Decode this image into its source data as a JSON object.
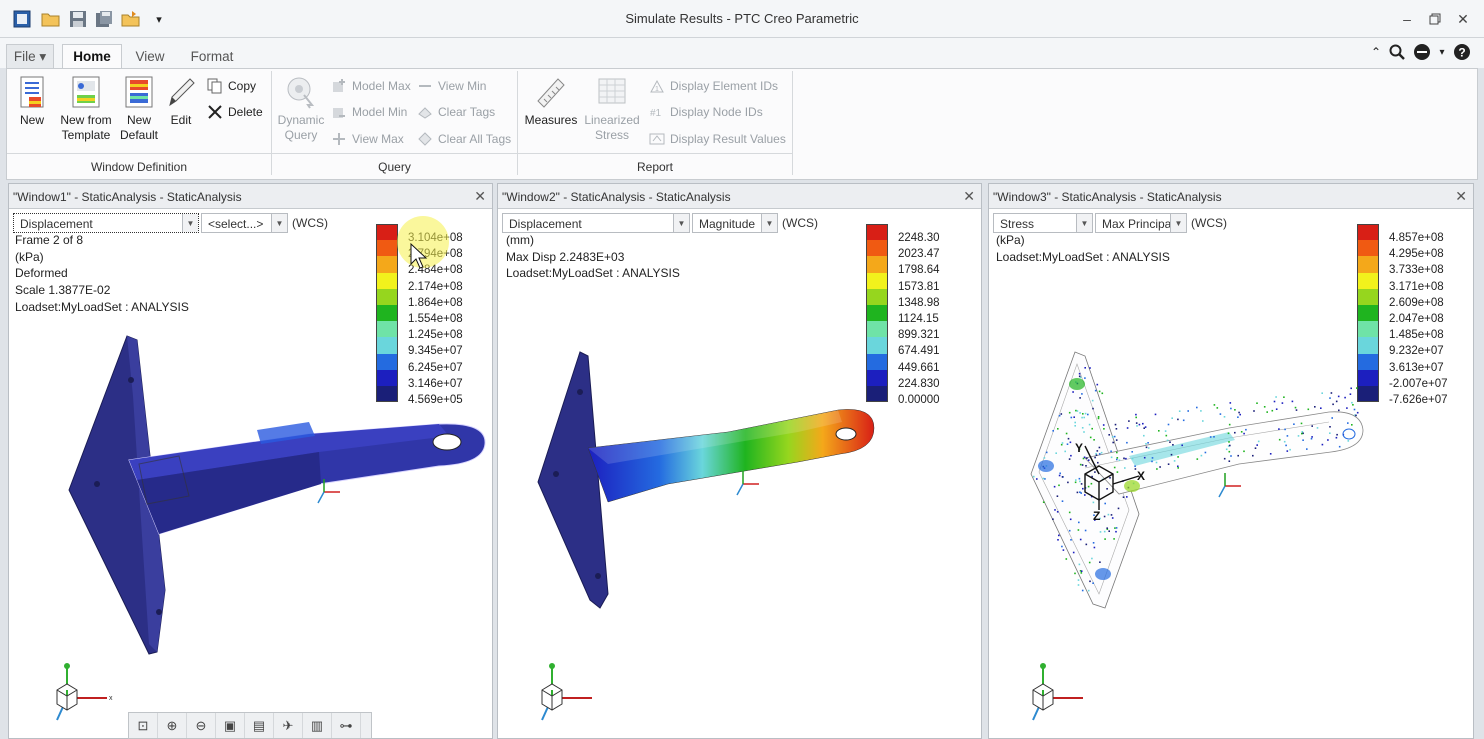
{
  "window_title": "Simulate Results - PTC Creo Parametric",
  "quick_access": [
    "app-icon",
    "open-icon",
    "save-icon",
    "save-as-icon",
    "open-folder-icon",
    "customize-dropdown-icon"
  ],
  "tabs": [
    {
      "label": "File ▾"
    },
    {
      "label": "Home"
    },
    {
      "label": "View"
    },
    {
      "label": "Format"
    }
  ],
  "ribbon": {
    "window_definition": {
      "label": "Window Definition",
      "new": "New",
      "new_from_template": [
        "New from",
        "Template"
      ],
      "new_default": [
        "New",
        "Default"
      ],
      "edit": "Edit",
      "copy": "Copy",
      "delete": "Delete"
    },
    "query": {
      "label": "Query",
      "dynamic_query": [
        "Dynamic",
        "Query"
      ],
      "model_max": "Model Max",
      "model_min": "Model Min",
      "view_max": "View Max",
      "view_min": "View Min",
      "clear_tags": "Clear Tags",
      "clear_all_tags": "Clear All Tags"
    },
    "report": {
      "label": "Report",
      "measures": "Measures",
      "linearized_stress": [
        "Linearized",
        "Stress"
      ],
      "display_element_ids": "Display Element IDs",
      "display_node_ids": "Display Node IDs",
      "display_result_values": "Display Result Values"
    }
  },
  "colors": {
    "legend": [
      "#d81f16",
      "#f05a12",
      "#f4a81a",
      "#f2f21c",
      "#96d61e",
      "#1fb41f",
      "#6fe3a7",
      "#6ad6dc",
      "#246be0",
      "#1c1fbf",
      "#1a1f78"
    ]
  },
  "windows": [
    {
      "title": "\"Window1\" - StaticAnalysis - StaticAnalysis",
      "quantity": "Displacement",
      "component": "<select...>",
      "wcs": "(WCS)",
      "info": [
        "Frame 2 of 8",
        "(kPa)",
        "Deformed",
        "Scale  1.3877E-02",
        "Loadset:MyLoadSet :  ANALYSIS"
      ],
      "legend": [
        "3.104e+08",
        "2.794e+08",
        "2.484e+08",
        "2.174e+08",
        "1.864e+08",
        "1.554e+08",
        "1.245e+08",
        "9.345e+07",
        "6.245e+07",
        "3.146e+07",
        "4.569e+05"
      ]
    },
    {
      "title": "\"Window2\" - StaticAnalysis - StaticAnalysis",
      "quantity": "Displacement",
      "component": "Magnitude",
      "wcs": "(WCS)",
      "info": [
        "(mm)",
        "Max Disp  2.2483E+03",
        "Loadset:MyLoadSet :  ANALYSIS"
      ],
      "legend": [
        "2248.30",
        "2023.47",
        "1798.64",
        "1573.81",
        "1348.98",
        "1124.15",
        "899.321",
        "674.491",
        "449.661",
        "224.830",
        "0.00000"
      ]
    },
    {
      "title": "\"Window3\" - StaticAnalysis - StaticAnalysis",
      "quantity": "Stress",
      "component": "Max Principa",
      "wcs": "(WCS)",
      "info": [
        "(kPa)",
        "Loadset:MyLoadSet :  ANALYSIS"
      ],
      "legend": [
        "4.857e+08",
        "4.295e+08",
        "3.733e+08",
        "3.171e+08",
        "2.609e+08",
        "2.047e+08",
        "1.485e+08",
        "9.232e+07",
        "3.613e+07",
        "-2.007e+07",
        "-7.626e+07"
      ]
    }
  ],
  "view_toolbar": [
    "refit-icon",
    "zoom-in-icon",
    "zoom-out-icon",
    "repaint-icon",
    "saved-views-icon",
    "spin-center-icon",
    "named-view-icon",
    "csys-display-icon"
  ]
}
